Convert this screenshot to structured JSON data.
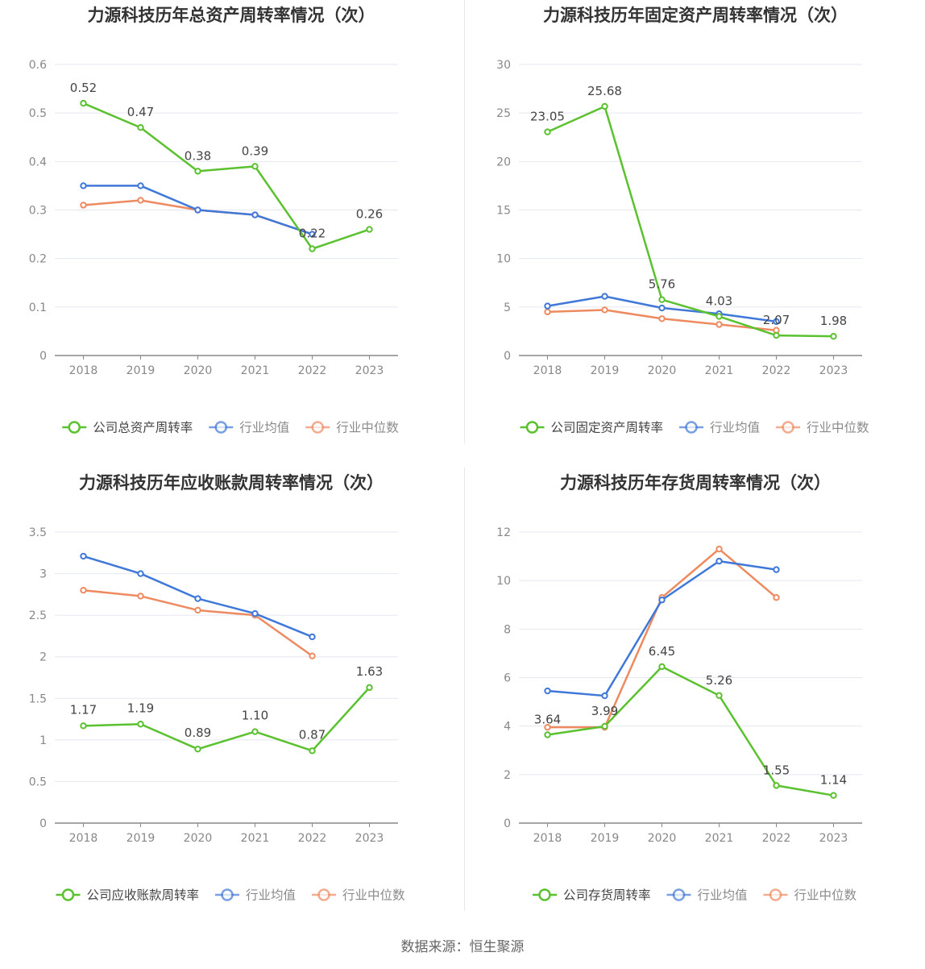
{
  "colors": {
    "company": "#5ac12f",
    "average": "#3f78d8",
    "median": "#ee8a60",
    "grid": "#e4e7f0",
    "axis": "#888888",
    "tick_text": "#888888",
    "label_text": "#444444",
    "legend_text": "#666666"
  },
  "footer": "数据来源：恒生聚源",
  "chart_data": [
    {
      "type": "line",
      "title": "力源科技历年总资产周转率情况（次）",
      "categories": [
        "2018",
        "2019",
        "2020",
        "2021",
        "2022",
        "2023"
      ],
      "yticks": [
        "0",
        "0.1",
        "0.2",
        "0.3",
        "0.4",
        "0.5",
        "0.6"
      ],
      "ylim": [
        0,
        0.6
      ],
      "series": [
        {
          "name": "公司总资产周转率",
          "role": "company",
          "values": [
            0.52,
            0.47,
            0.38,
            0.39,
            0.22,
            0.26
          ],
          "labels": [
            "0.52",
            "0.47",
            "0.38",
            "0.39",
            "0.22",
            "0.26"
          ]
        },
        {
          "name": "行业均值",
          "role": "average",
          "values": [
            0.35,
            0.35,
            0.3,
            0.29,
            0.25,
            null
          ]
        },
        {
          "name": "行业中位数",
          "role": "median",
          "values": [
            0.31,
            0.32,
            0.3,
            0.29,
            0.25,
            null
          ]
        }
      ],
      "legend_position": "bottom"
    },
    {
      "type": "line",
      "title": "力源科技历年固定资产周转率情况（次）",
      "categories": [
        "2018",
        "2019",
        "2020",
        "2021",
        "2022",
        "2023"
      ],
      "yticks": [
        "0",
        "5",
        "10",
        "15",
        "20",
        "25",
        "30"
      ],
      "ylim": [
        0,
        30
      ],
      "series": [
        {
          "name": "公司固定资产周转率",
          "role": "company",
          "values": [
            23.05,
            25.68,
            5.76,
            4.03,
            2.07,
            1.98
          ],
          "labels": [
            "23.05",
            "25.68",
            "5.76",
            "4.03",
            "2.07",
            "1.98"
          ]
        },
        {
          "name": "行业均值",
          "role": "average",
          "values": [
            5.1,
            6.1,
            4.9,
            4.3,
            3.5,
            null
          ]
        },
        {
          "name": "行业中位数",
          "role": "median",
          "values": [
            4.5,
            4.7,
            3.8,
            3.2,
            2.6,
            null
          ]
        }
      ],
      "legend_position": "bottom"
    },
    {
      "type": "line",
      "title": "力源科技历年应收账款周转率情况（次）",
      "categories": [
        "2018",
        "2019",
        "2020",
        "2021",
        "2022",
        "2023"
      ],
      "yticks": [
        "0",
        "0.5",
        "1",
        "1.5",
        "2",
        "2.5",
        "3",
        "3.5"
      ],
      "ylim": [
        0,
        3.5
      ],
      "series": [
        {
          "name": "公司应收账款周转率",
          "role": "company",
          "values": [
            1.17,
            1.19,
            0.89,
            1.1,
            0.87,
            1.63
          ],
          "labels": [
            "1.17",
            "1.19",
            "0.89",
            "1.10",
            "0.87",
            "1.63"
          ]
        },
        {
          "name": "行业均值",
          "role": "average",
          "values": [
            3.21,
            3.0,
            2.7,
            2.52,
            2.24,
            null
          ]
        },
        {
          "name": "行业中位数",
          "role": "median",
          "values": [
            2.8,
            2.73,
            2.56,
            2.5,
            2.01,
            null
          ]
        }
      ],
      "legend_position": "bottom"
    },
    {
      "type": "line",
      "title": "力源科技历年存货周转率情况（次）",
      "categories": [
        "2018",
        "2019",
        "2020",
        "2021",
        "2022",
        "2023"
      ],
      "yticks": [
        "0",
        "2",
        "4",
        "6",
        "8",
        "10",
        "12"
      ],
      "ylim": [
        0,
        12
      ],
      "series": [
        {
          "name": "公司存货周转率",
          "role": "company",
          "values": [
            3.64,
            3.99,
            6.45,
            5.26,
            1.55,
            1.14
          ],
          "labels": [
            "3.64",
            "3.99",
            "6.45",
            "5.26",
            "1.55",
            "1.14"
          ]
        },
        {
          "name": "行业均值",
          "role": "average",
          "values": [
            5.45,
            5.25,
            9.2,
            10.8,
            10.45,
            null
          ]
        },
        {
          "name": "行业中位数",
          "role": "median",
          "values": [
            3.95,
            3.95,
            9.3,
            11.3,
            9.3,
            null
          ]
        }
      ],
      "legend_position": "bottom"
    }
  ]
}
